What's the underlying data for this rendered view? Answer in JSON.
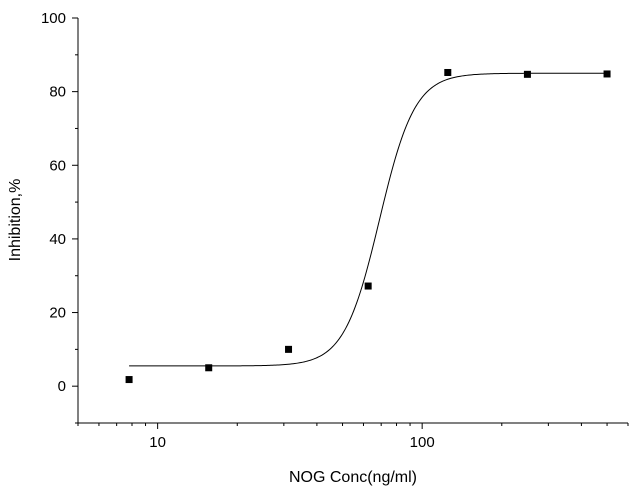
{
  "chart_data": {
    "type": "scatter",
    "title": "",
    "xlabel": "NOG Conc(ng/ml)",
    "ylabel": "Inhibition,%",
    "xscale": "log",
    "xlim": [
      5,
      600
    ],
    "ylim": [
      -10,
      100
    ],
    "xticks": [
      10,
      100
    ],
    "xtick_labels": [
      "10",
      "100"
    ],
    "yticks": [
      0,
      20,
      40,
      60,
      80,
      100
    ],
    "ytick_labels": [
      "0",
      "20",
      "40",
      "60",
      "80",
      "100"
    ],
    "grid": false,
    "legend": "none",
    "series": [
      {
        "kind": "points",
        "marker": "square",
        "color": "#000000",
        "x": [
          7.8,
          15.6,
          31.25,
          62.5,
          125,
          250,
          500
        ],
        "y": [
          1.8,
          5.0,
          10.0,
          27.2,
          85.2,
          84.7,
          84.8
        ]
      },
      {
        "kind": "fit-curve",
        "color": "#000000",
        "bottom": 5.5,
        "top": 85.0,
        "ec50": 69,
        "hill": 6.5
      }
    ]
  }
}
